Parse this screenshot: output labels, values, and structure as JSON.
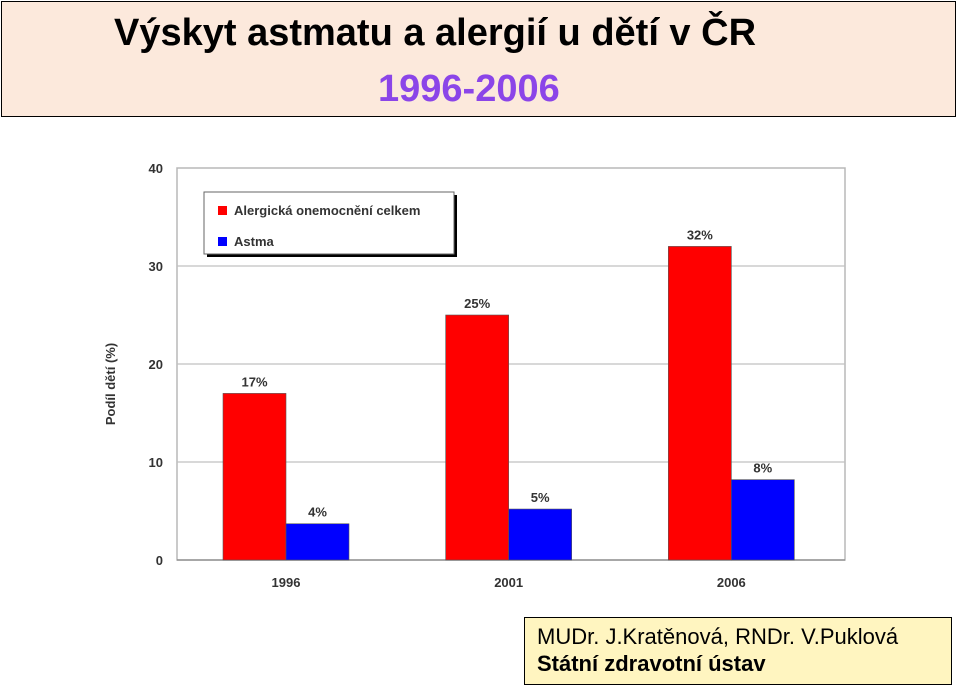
{
  "header": {
    "title": "Výskyt astmatu a alergií u dětí v ČR",
    "subtitle": "1996-2006",
    "subtitle_color": "#8b45e8"
  },
  "credit": {
    "line1": "MUDr. J.Kratěnová, RNDr. V.Puklová",
    "line2": "Státní zdravotní ústav"
  },
  "chart_data": {
    "type": "bar",
    "categories": [
      "1996",
      "2001",
      "2006"
    ],
    "series": [
      {
        "name": "Alergická onemocnění celkem",
        "values": [
          17,
          25,
          32
        ],
        "labels": [
          "17%",
          "25%",
          "32%"
        ],
        "color": "#ff0000"
      },
      {
        "name": "Astma",
        "values": [
          3.7,
          5.2,
          8.2
        ],
        "labels": [
          "4%",
          "5%",
          "8%"
        ],
        "color": "#0000ff"
      }
    ],
    "ylabel": "Podíl dětí (%)",
    "ylim": [
      0,
      40
    ],
    "yticks": [
      "0",
      "10",
      "20",
      "30",
      "40"
    ],
    "grid": true,
    "legend": "top-left"
  }
}
